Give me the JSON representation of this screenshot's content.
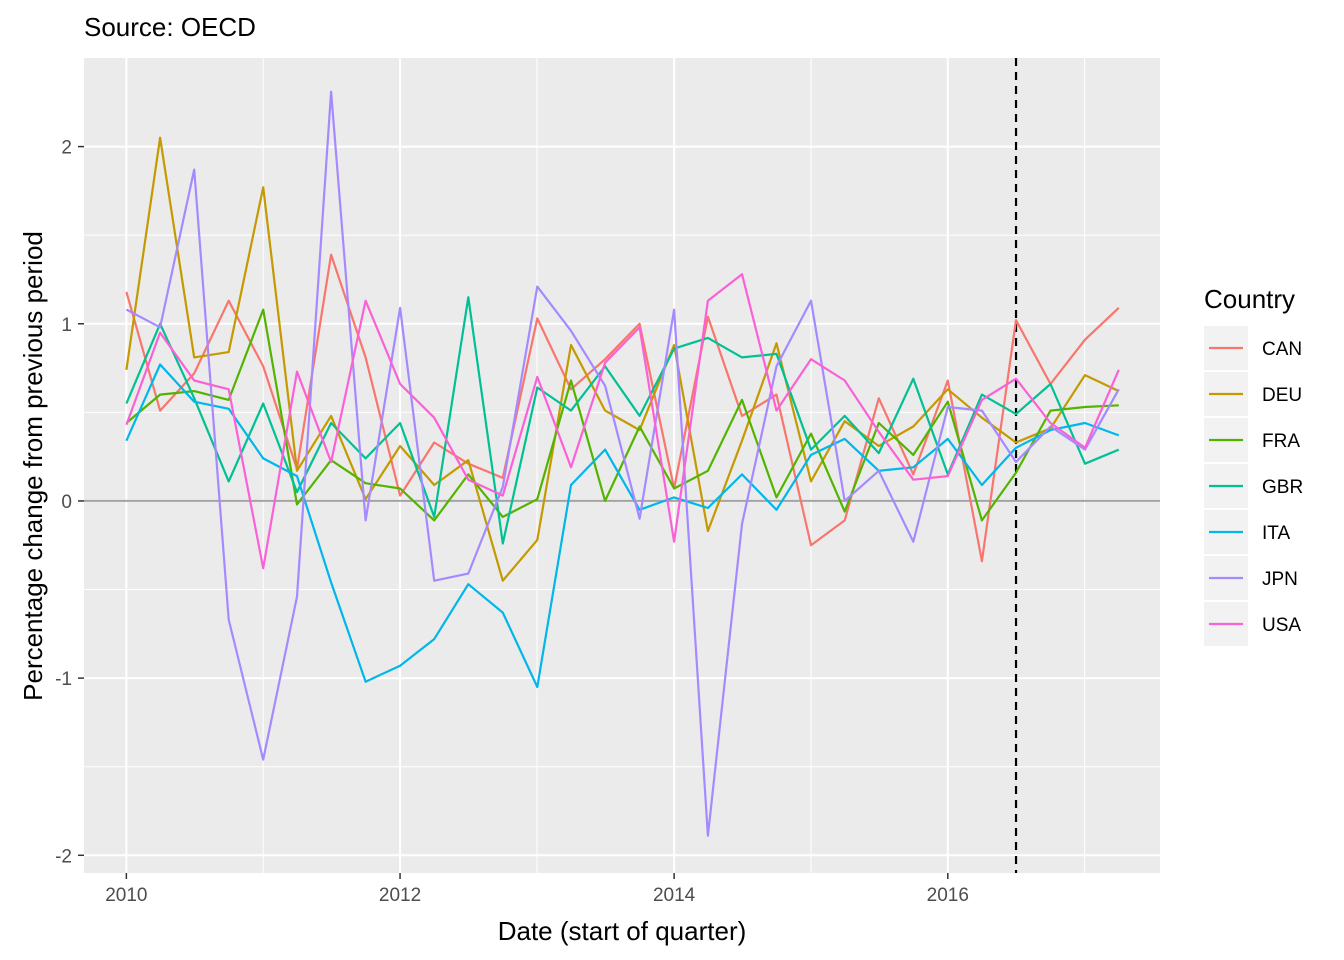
{
  "chart_data": {
    "type": "line",
    "subtitle": "Source: OECD",
    "xlabel": "Date (start of quarter)",
    "ylabel": "Percentage change from previous period",
    "xlim": [
      "2009-09-10",
      "2017-07-20"
    ],
    "ylim": [
      -2.1,
      2.5
    ],
    "x_ticks": [
      "2010-01-01",
      "2012-01-01",
      "2014-01-01",
      "2016-01-01"
    ],
    "x_tick_labels": [
      "2010",
      "2012",
      "2014",
      "2016"
    ],
    "y_ticks": [
      -2,
      -1,
      0,
      1,
      2
    ],
    "y_tick_labels": [
      "-2",
      "-1",
      "0",
      "1",
      "2"
    ],
    "hline": 0,
    "vline": "2016-07-01",
    "grid": true,
    "legend": {
      "title": "Country",
      "position": "right"
    },
    "x": [
      "2010-01-01",
      "2010-04-01",
      "2010-07-01",
      "2010-10-01",
      "2011-01-01",
      "2011-04-01",
      "2011-07-01",
      "2011-10-01",
      "2012-01-01",
      "2012-04-01",
      "2012-07-01",
      "2012-10-01",
      "2013-01-01",
      "2013-04-01",
      "2013-07-01",
      "2013-10-01",
      "2014-01-01",
      "2014-04-01",
      "2014-07-01",
      "2014-10-01",
      "2015-01-01",
      "2015-04-01",
      "2015-07-01",
      "2015-10-01",
      "2016-01-01",
      "2016-04-01",
      "2016-07-01",
      "2016-10-01",
      "2017-01-01",
      "2017-04-01"
    ],
    "series": [
      {
        "name": "CAN",
        "color": "#F8766D",
        "values": [
          1.18,
          0.51,
          0.72,
          1.13,
          0.76,
          0.18,
          1.39,
          0.81,
          0.03,
          0.33,
          0.21,
          0.13,
          1.03,
          0.63,
          0.8,
          1.0,
          0.07,
          1.04,
          0.48,
          0.6,
          -0.25,
          -0.11,
          0.58,
          0.15,
          0.68,
          -0.34,
          1.02,
          0.66,
          0.91,
          1.09
        ]
      },
      {
        "name": "DEU",
        "color": "#C49A00",
        "values": [
          0.74,
          2.05,
          0.81,
          0.84,
          1.77,
          0.17,
          0.48,
          0.01,
          0.31,
          0.09,
          0.23,
          -0.45,
          -0.22,
          0.88,
          0.51,
          0.4,
          0.88,
          -0.17,
          0.34,
          0.89,
          0.11,
          0.45,
          0.31,
          0.42,
          0.63,
          0.47,
          0.33,
          0.41,
          0.71,
          0.62
        ]
      },
      {
        "name": "FRA",
        "color": "#53B400",
        "values": [
          0.44,
          0.6,
          0.62,
          0.57,
          1.08,
          -0.02,
          0.23,
          0.1,
          0.07,
          -0.11,
          0.15,
          -0.09,
          0.01,
          0.68,
          0.0,
          0.42,
          0.07,
          0.17,
          0.57,
          0.02,
          0.38,
          -0.06,
          0.44,
          0.26,
          0.56,
          -0.11,
          0.16,
          0.51,
          0.53,
          0.54
        ]
      },
      {
        "name": "GBR",
        "color": "#00C094",
        "values": [
          0.55,
          1.0,
          0.58,
          0.11,
          0.55,
          0.05,
          0.44,
          0.24,
          0.44,
          -0.09,
          1.15,
          -0.24,
          0.64,
          0.51,
          0.76,
          0.48,
          0.86,
          0.92,
          0.81,
          0.83,
          0.29,
          0.48,
          0.27,
          0.69,
          0.15,
          0.6,
          0.49,
          0.66,
          0.21,
          0.29
        ]
      },
      {
        "name": "ITA",
        "color": "#00B6EB",
        "values": [
          0.34,
          0.77,
          0.56,
          0.52,
          0.24,
          0.14,
          -0.46,
          -1.02,
          -0.93,
          -0.78,
          -0.47,
          -0.63,
          -1.05,
          0.09,
          0.29,
          -0.05,
          0.02,
          -0.04,
          0.15,
          -0.05,
          0.26,
          0.35,
          0.17,
          0.19,
          0.35,
          0.09,
          0.3,
          0.4,
          0.44,
          0.37
        ]
      },
      {
        "name": "JPN",
        "color": "#A58AFF",
        "values": [
          1.08,
          0.98,
          1.87,
          -0.67,
          -1.46,
          -0.54,
          2.31,
          -0.11,
          1.09,
          -0.45,
          -0.41,
          0.08,
          1.21,
          0.96,
          0.65,
          -0.1,
          1.08,
          -1.89,
          -0.13,
          0.76,
          1.13,
          0.0,
          0.17,
          -0.23,
          0.53,
          0.51,
          0.22,
          0.42,
          0.29,
          0.63
        ]
      },
      {
        "name": "USA",
        "color": "#FB61D7",
        "values": [
          0.43,
          0.95,
          0.68,
          0.63,
          -0.38,
          0.73,
          0.22,
          1.13,
          0.66,
          0.47,
          0.12,
          0.03,
          0.7,
          0.19,
          0.78,
          0.98,
          -0.23,
          1.13,
          1.28,
          0.51,
          0.8,
          0.68,
          0.39,
          0.12,
          0.14,
          0.57,
          0.69,
          0.44,
          0.3,
          0.74
        ]
      }
    ]
  }
}
